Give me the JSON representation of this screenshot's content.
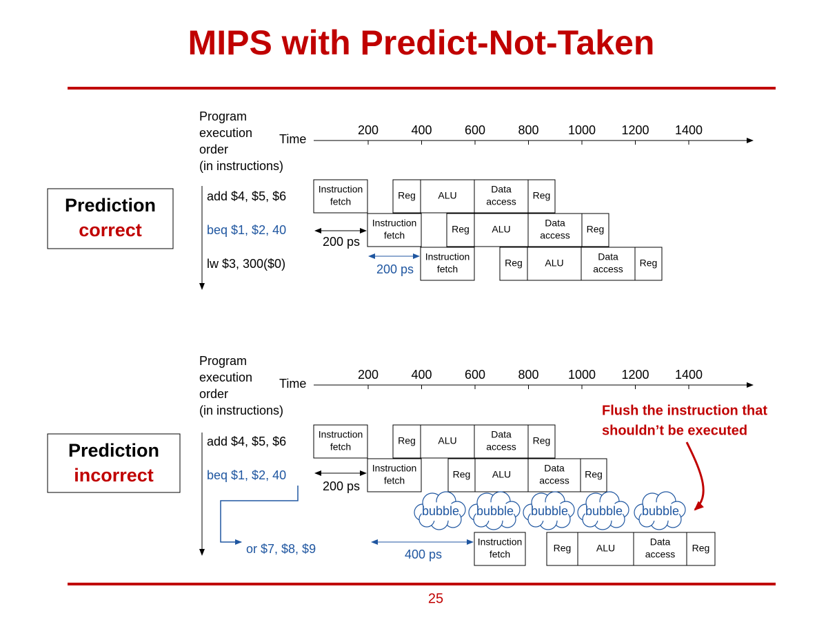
{
  "title": "MIPS with Predict-Not-Taken",
  "page_number": "25",
  "top": {
    "label": [
      "Prediction",
      "correct"
    ],
    "caption": [
      "Program",
      "execution",
      "order",
      "(in instructions)"
    ],
    "time": "Time",
    "ticks": [
      "200",
      "400",
      "600",
      "800",
      "1000",
      "1200",
      "1400"
    ],
    "rows": [
      {
        "instruction": "add $4, $5, $6",
        "stages": [
          [
            "Instruction",
            "fetch"
          ],
          [
            "Reg"
          ],
          [
            "ALU"
          ],
          [
            "Data",
            "access"
          ],
          [
            "Reg"
          ]
        ]
      },
      {
        "instruction": "beq $1, $2, 40",
        "stages": [
          [
            "Instruction",
            "fetch"
          ],
          [
            "Reg"
          ],
          [
            "ALU"
          ],
          [
            "Data",
            "access"
          ],
          [
            "Reg"
          ]
        ]
      },
      {
        "instruction": "lw  $3, 300($0)",
        "stages": [
          [
            "Instruction",
            "fetch"
          ],
          [
            "Reg"
          ],
          [
            "ALU"
          ],
          [
            "Data",
            "access"
          ],
          [
            "Reg"
          ]
        ]
      }
    ],
    "gaps": [
      "200 ps",
      "200 ps"
    ]
  },
  "bottom": {
    "label": [
      "Prediction",
      "incorrect"
    ],
    "caption": [
      "Program",
      "execution",
      "order",
      "(in instructions)"
    ],
    "time": "Time",
    "ticks": [
      "200",
      "400",
      "600",
      "800",
      "1000",
      "1200",
      "1400"
    ],
    "rows": [
      {
        "instruction": "add $4, $5, $6",
        "stages": [
          [
            "Instruction",
            "fetch"
          ],
          [
            "Reg"
          ],
          [
            "ALU"
          ],
          [
            "Data",
            "access"
          ],
          [
            "Reg"
          ]
        ]
      },
      {
        "instruction": "beq $1, $2, 40",
        "stages": [
          [
            "Instruction",
            "fetch"
          ],
          [
            "Reg"
          ],
          [
            "ALU"
          ],
          [
            "Data",
            "access"
          ],
          [
            "Reg"
          ]
        ]
      },
      {
        "instruction": "or $7, $8, $9",
        "stages": [
          [
            "Instruction",
            "fetch"
          ],
          [
            "Reg"
          ],
          [
            "ALU"
          ],
          [
            "Data",
            "access"
          ],
          [
            "Reg"
          ]
        ]
      }
    ],
    "gaps": [
      "200 ps",
      "400 ps"
    ],
    "bubbles": [
      "bubble",
      "bubble",
      "bubble",
      "bubble",
      "bubble"
    ]
  },
  "flush_note": [
    "Flush the instruction that",
    "shouldn’t be executed"
  ]
}
